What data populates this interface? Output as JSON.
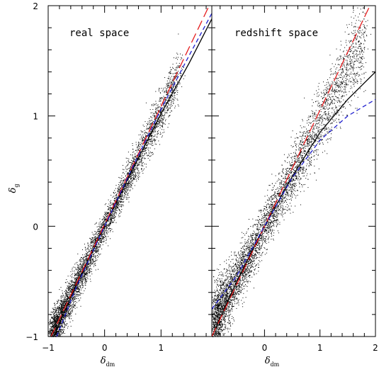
{
  "chart_data": [
    {
      "type": "scatter",
      "panel": "left",
      "title": "real space",
      "xlabel": "δ",
      "xlabel_sub": "dm",
      "ylabel": "δ",
      "ylabel_sub": "g",
      "xlim": [
        -1,
        1.9
      ],
      "ylim": [
        -1,
        2
      ],
      "xticks": [
        -1,
        0,
        1
      ],
      "yticks": [
        -1,
        0,
        1,
        2
      ],
      "grid": false,
      "scatter_model": {
        "x_range": [
          -0.95,
          1.3
        ],
        "slope": 1.05,
        "intercept": 0.0,
        "spread": 0.1,
        "n_points": 5000
      },
      "series": [
        {
          "style": "solid",
          "color": "#000000",
          "x": [
            -0.9,
            -0.5,
            0,
            0.5,
            1.0,
            1.5,
            1.9
          ],
          "y": [
            -1.0,
            -0.53,
            0.0,
            0.52,
            1.02,
            1.48,
            1.88
          ]
        },
        {
          "style": "long-dash",
          "color": "#e41a1c",
          "x": [
            -0.95,
            1.9
          ],
          "y": [
            -1.0,
            2.05
          ]
        },
        {
          "style": "short-dash",
          "color": "#1f1fd0",
          "x": [
            -0.85,
            -0.5,
            0,
            0.5,
            1.0,
            1.5,
            1.9
          ],
          "y": [
            -1.0,
            -0.55,
            0.0,
            0.54,
            1.06,
            1.55,
            1.93
          ]
        }
      ]
    },
    {
      "type": "scatter",
      "panel": "right",
      "title": "redshift space",
      "xlabel": "δ",
      "xlabel_sub": "dm",
      "xlim": [
        -0.95,
        2
      ],
      "ylim": [
        -1,
        2
      ],
      "xticks": [
        0,
        1,
        2
      ],
      "yticks": [
        -1,
        0,
        1,
        2
      ],
      "grid": false,
      "scatter_model": {
        "x_range": [
          -0.9,
          1.8
        ],
        "slope": 0.95,
        "intercept": 0.0,
        "spread": 0.15,
        "n_points": 5000
      },
      "series": [
        {
          "style": "solid",
          "color": "#000000",
          "x": [
            -0.95,
            -0.5,
            0,
            0.5,
            1.0,
            1.5,
            2.0
          ],
          "y": [
            -1.0,
            -0.5,
            0.0,
            0.45,
            0.85,
            1.15,
            1.4
          ]
        },
        {
          "style": "long-dash",
          "color": "#e41a1c",
          "x": [
            -0.95,
            1.9
          ],
          "y": [
            -1.0,
            2.0
          ]
        },
        {
          "style": "short-dash",
          "color": "#1f1fd0",
          "x": [
            -0.95,
            -0.5,
            0,
            0.5,
            1.0,
            1.5,
            2.0
          ],
          "y": [
            -0.75,
            -0.45,
            0.0,
            0.44,
            0.78,
            1.0,
            1.15
          ]
        }
      ]
    }
  ]
}
